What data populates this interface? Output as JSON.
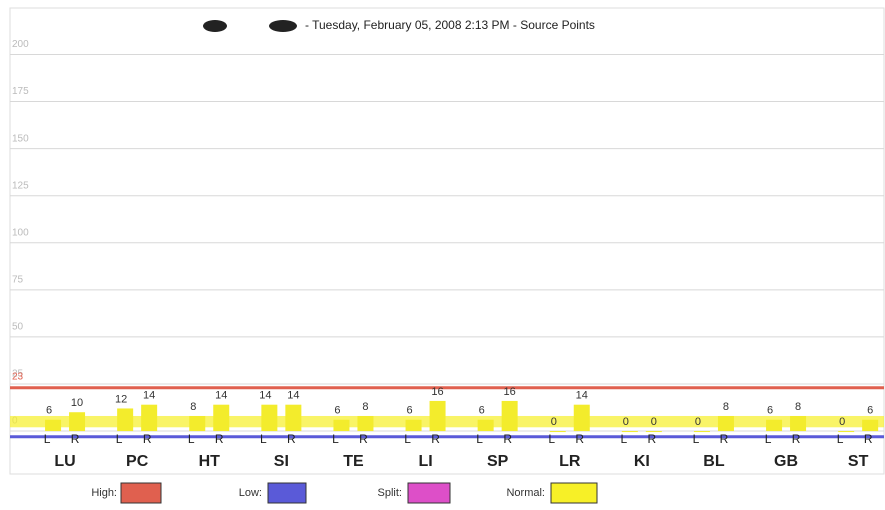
{
  "chart_data": {
    "type": "bar",
    "title": "- Tuesday, February 05, 2008 2:13 PM - Source Points",
    "categories": [
      "LU",
      "PC",
      "HT",
      "SI",
      "TE",
      "LI",
      "SP",
      "LR",
      "KI",
      "BL",
      "GB",
      "ST"
    ],
    "series": [
      {
        "name": "L",
        "color": "#f3ec2c",
        "values": [
          6,
          12,
          8,
          14,
          6,
          6,
          6,
          0,
          0,
          0,
          6,
          0
        ]
      },
      {
        "name": "R",
        "color": "#f3ec2c",
        "values": [
          10,
          14,
          14,
          14,
          8,
          16,
          16,
          14,
          0,
          8,
          8,
          6
        ]
      }
    ],
    "ylim": [
      -9,
      213
    ],
    "yticks": [
      0,
      25,
      50,
      75,
      100,
      125,
      150,
      175,
      200
    ],
    "grid": true,
    "high": {
      "label": "High:",
      "value": 23,
      "color": "#e0604f"
    },
    "low": {
      "label": "Low:",
      "value": -3,
      "color": "#5a5ad8"
    },
    "split": {
      "label": "Split:",
      "color": "#dd4fc8"
    },
    "normal": {
      "label": "Normal:",
      "range": [
        2,
        8
      ],
      "color": "#f7f027"
    }
  }
}
